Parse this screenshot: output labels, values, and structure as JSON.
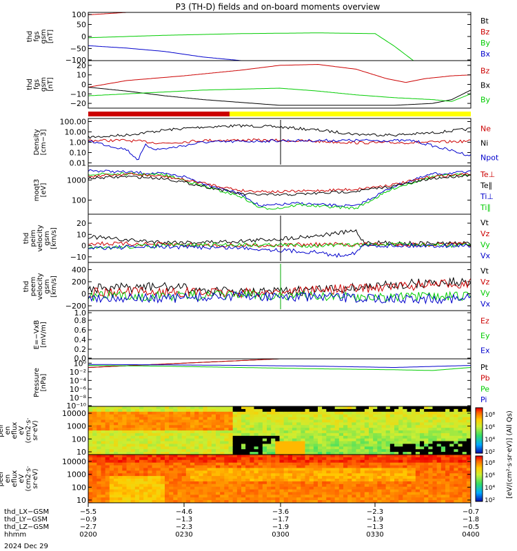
{
  "title": "P3 (TH-D) fields and on-board moments overview",
  "date_label": "2024 Dec 29",
  "colors": {
    "black": "#000000",
    "red": "#cc0000",
    "green": "#00cc00",
    "blue": "#0000cc",
    "yellow": "#ffff00"
  },
  "chart_data": [
    {
      "type": "line",
      "ylabel": [
        "thd",
        "fgs",
        "gsm",
        "[nT]"
      ],
      "ylim": [
        -100,
        100
      ],
      "yticks": [
        "100",
        "50",
        "0",
        "−50",
        "−100"
      ],
      "legend": [
        {
          "label": "Bt",
          "color": "#000000"
        },
        {
          "label": "Bz",
          "color": "#cc0000"
        },
        {
          "label": "By",
          "color": "#00cc00"
        },
        {
          "label": "Bx",
          "color": "#0000cc"
        }
      ],
      "series": [
        {
          "name": "Bz",
          "color": "#cc0000",
          "x": [
            0,
            0.08,
            0.2
          ],
          "y": [
            90,
            98,
            110
          ]
        },
        {
          "name": "By",
          "color": "#00cc00",
          "x": [
            0,
            0.2,
            0.4,
            0.6,
            0.75,
            0.8,
            0.85
          ],
          "y": [
            -5,
            5,
            12,
            15,
            12,
            -40,
            -100
          ]
        },
        {
          "name": "Bx",
          "color": "#0000cc",
          "x": [
            0,
            0.1,
            0.2,
            0.3,
            0.4
          ],
          "y": [
            -38,
            -48,
            -62,
            -85,
            -100
          ]
        }
      ]
    },
    {
      "type": "line",
      "ylabel": [
        "thd",
        "fgs",
        "gsm",
        "[nT]"
      ],
      "ylim": [
        -25,
        25
      ],
      "yticks": [
        "20",
        "10",
        "0",
        "−10",
        "−20"
      ],
      "legend": [
        {
          "label": "Bz",
          "color": "#cc0000"
        },
        {
          "label": "Bx",
          "color": "#000000"
        },
        {
          "label": "By",
          "color": "#00cc00"
        }
      ],
      "series": [
        {
          "name": "Bz",
          "color": "#cc0000",
          "x": [
            0,
            0.1,
            0.25,
            0.4,
            0.5,
            0.6,
            0.7,
            0.78,
            0.83,
            0.88,
            0.95,
            1.0
          ],
          "y": [
            -3,
            4,
            9,
            15,
            20,
            21,
            16,
            6,
            2,
            6,
            9,
            10
          ]
        },
        {
          "name": "Bx",
          "color": "#000000",
          "x": [
            0,
            0.1,
            0.2,
            0.3,
            0.4,
            0.5,
            0.6,
            0.7,
            0.8,
            0.9,
            0.95,
            1.0
          ],
          "y": [
            -3,
            -7,
            -12,
            -16,
            -19,
            -22,
            -22,
            -22,
            -22,
            -20,
            -16,
            -6
          ]
        },
        {
          "name": "By",
          "color": "#00cc00",
          "x": [
            0,
            0.1,
            0.2,
            0.3,
            0.4,
            0.5,
            0.6,
            0.7,
            0.8,
            0.9,
            0.95,
            1.0
          ],
          "y": [
            -12,
            -10,
            -8,
            -6,
            -5,
            -4,
            -7,
            -11,
            -14,
            -16,
            -18,
            -10
          ]
        }
      ]
    },
    {
      "type": "line",
      "log": true,
      "ylabel": [
        "Density",
        "[cm−3]"
      ],
      "ylim": [
        0.005,
        200
      ],
      "yticks": [
        "100.00",
        "10.00",
        "1.00",
        "0.10",
        "0.01"
      ],
      "ytick_values": [
        100,
        10,
        1,
        0.1,
        0.01
      ],
      "legend": [
        {
          "label": "Ne",
          "color": "#cc0000"
        },
        {
          "label": "Ni",
          "color": "#000000"
        },
        {
          "label": "Npot",
          "color": "#0000cc"
        }
      ],
      "series": [
        {
          "name": "Ni",
          "color": "#000000",
          "x": [
            0,
            0.1,
            0.2,
            0.3,
            0.4,
            0.5,
            0.6,
            0.7,
            0.8,
            0.9,
            1.0
          ],
          "y": [
            3,
            5,
            15,
            30,
            40,
            30,
            15,
            6,
            5,
            8,
            20
          ]
        },
        {
          "name": "Ne",
          "color": "#cc0000",
          "x": [
            0,
            0.1,
            0.2,
            0.3,
            0.4,
            0.5,
            0.6,
            0.7,
            0.8,
            0.9,
            1.0
          ],
          "y": [
            1.5,
            1.5,
            0.8,
            1.5,
            1.6,
            1.5,
            1.2,
            0.9,
            0.9,
            1,
            1.3
          ]
        },
        {
          "name": "Npot",
          "color": "#0000cc",
          "x": [
            0,
            0.05,
            0.1,
            0.13,
            0.15,
            0.18,
            0.22,
            0.3,
            0.5,
            0.7,
            0.85,
            1.0
          ],
          "y": [
            1.5,
            0.5,
            0.2,
            0.02,
            0.5,
            0.2,
            0.3,
            1,
            1.4,
            1.5,
            1.4,
            0.05
          ]
        }
      ]
    },
    {
      "type": "line",
      "log": true,
      "ylabel": [
        "moqt3",
        "[eV]"
      ],
      "ylim": [
        20,
        5000
      ],
      "yticks": [
        "1000",
        "100"
      ],
      "ytick_values": [
        1000,
        100
      ],
      "legend": [
        {
          "label": "Te⊥",
          "color": "#cc0000"
        },
        {
          "label": "Te∥",
          "color": "#000000"
        },
        {
          "label": "Ti⊥",
          "color": "#0000cc"
        },
        {
          "label": "Ti∥",
          "color": "#00cc00"
        }
      ],
      "series": [
        {
          "name": "Ti⊥",
          "color": "#0000cc",
          "x": [
            0,
            0.1,
            0.2,
            0.25,
            0.3,
            0.4,
            0.45,
            0.5,
            0.55,
            0.6,
            0.7,
            0.8,
            0.9,
            1.0
          ],
          "y": [
            3000,
            2500,
            2000,
            1500,
            700,
            200,
            50,
            60,
            70,
            60,
            50,
            500,
            2000,
            2500
          ]
        },
        {
          "name": "Ti∥",
          "color": "#00cc00",
          "x": [
            0,
            0.1,
            0.2,
            0.25,
            0.3,
            0.4,
            0.45,
            0.5,
            0.55,
            0.6,
            0.7,
            0.8,
            0.9,
            1.0
          ],
          "y": [
            2000,
            2000,
            1800,
            1000,
            500,
            150,
            40,
            40,
            60,
            50,
            40,
            400,
            1500,
            2000
          ]
        },
        {
          "name": "Te⊥",
          "color": "#cc0000",
          "x": [
            0,
            0.1,
            0.2,
            0.3,
            0.4,
            0.5,
            0.6,
            0.7,
            0.8,
            0.9,
            1.0
          ],
          "y": [
            1500,
            2000,
            1500,
            700,
            300,
            260,
            300,
            350,
            600,
            1500,
            2000
          ]
        },
        {
          "name": "Te∥",
          "color": "#000000",
          "x": [
            0,
            0.1,
            0.2,
            0.3,
            0.4,
            0.5,
            0.6,
            0.7,
            0.8,
            0.9,
            1.0
          ],
          "y": [
            1200,
            1500,
            1200,
            500,
            200,
            180,
            220,
            280,
            500,
            1200,
            1800
          ]
        }
      ]
    },
    {
      "type": "line",
      "ylabel": [
        "thd",
        "peim",
        "velocity",
        "gsm",
        "[km/s]"
      ],
      "ylim": [
        -15,
        28
      ],
      "yticks": [
        "20",
        "10",
        "0",
        "−10"
      ],
      "legend": [
        {
          "label": "Vt",
          "color": "#000000"
        },
        {
          "label": "Vz",
          "color": "#cc0000"
        },
        {
          "label": "Vy",
          "color": "#00cc00"
        },
        {
          "label": "Vx",
          "color": "#0000cc"
        }
      ],
      "series": [
        {
          "name": "Vt",
          "color": "#000000",
          "x": [
            0,
            0.1,
            0.2,
            0.3,
            0.4,
            0.5,
            0.6,
            0.7,
            0.72,
            0.8,
            0.9,
            1.0
          ],
          "y": [
            8,
            5,
            3,
            3,
            4,
            6,
            9,
            13,
            3,
            2,
            2,
            2
          ]
        },
        {
          "name": "Vz",
          "color": "#cc0000",
          "x": [
            0,
            0.2,
            0.4,
            0.6,
            0.8,
            1.0
          ],
          "y": [
            2,
            1,
            0,
            1,
            1,
            1
          ]
        },
        {
          "name": "Vy",
          "color": "#00cc00",
          "x": [
            0,
            0.1,
            0.2,
            0.4,
            0.6,
            0.8,
            1.0
          ],
          "y": [
            -3,
            -1,
            0,
            1,
            0,
            1,
            0
          ]
        },
        {
          "name": "Vx",
          "color": "#0000cc",
          "x": [
            0,
            0.2,
            0.4,
            0.5,
            0.6,
            0.65,
            0.7,
            0.72,
            0.8,
            1.0
          ],
          "y": [
            -2,
            -1,
            -2,
            -4,
            -6,
            -9,
            -6,
            0,
            0,
            0
          ]
        }
      ]
    },
    {
      "type": "line",
      "ylabel": [
        "thd",
        "peem",
        "velocity",
        "gsm",
        "[km/s]"
      ],
      "ylim": [
        -280,
        520
      ],
      "yticks": [
        "400",
        "200",
        "0",
        "−200"
      ],
      "legend": [
        {
          "label": "Vt",
          "color": "#000000"
        },
        {
          "label": "Vz",
          "color": "#cc0000"
        },
        {
          "label": "Vy",
          "color": "#00cc00"
        },
        {
          "label": "Vx",
          "color": "#0000cc"
        }
      ],
      "series": [
        {
          "name": "Vt",
          "color": "#000000",
          "x": [
            0,
            0.1,
            0.2,
            0.3,
            0.4,
            0.5,
            0.6,
            0.7,
            0.8,
            0.9,
            1.0
          ],
          "y": [
            80,
            100,
            120,
            60,
            20,
            30,
            60,
            100,
            150,
            180,
            200
          ]
        },
        {
          "name": "Vz",
          "color": "#cc0000",
          "x": [
            0,
            0.2,
            0.4,
            0.6,
            0.8,
            1.0
          ],
          "y": [
            20,
            30,
            10,
            60,
            120,
            180
          ]
        },
        {
          "name": "Vy",
          "color": "#00cc00",
          "x": [
            0,
            0.2,
            0.4,
            0.6,
            0.8,
            1.0
          ],
          "y": [
            -40,
            -40,
            -20,
            -40,
            -60,
            -40
          ]
        },
        {
          "name": "Vx",
          "color": "#0000cc",
          "x": [
            0,
            0.2,
            0.4,
            0.6,
            0.8,
            1.0
          ],
          "y": [
            -60,
            -80,
            -40,
            -60,
            -80,
            -80
          ]
        }
      ]
    },
    {
      "type": "line",
      "ylabel": [
        "E=−VxB",
        "[mV/m]"
      ],
      "ylim": [
        0,
        1
      ],
      "yticks": [
        "1.0",
        "0.8",
        "0.6",
        "0.4",
        "0.2",
        "0.0"
      ],
      "legend": [
        {
          "label": "Ez",
          "color": "#cc0000"
        },
        {
          "label": "Ey",
          "color": "#00cc00"
        },
        {
          "label": "Ex",
          "color": "#0000cc"
        }
      ],
      "series": []
    },
    {
      "type": "line",
      "log": true,
      "ylabel": [
        "Pressure",
        "[nPa]"
      ],
      "ylim": [
        1e-10,
        10
      ],
      "yticks": [
        "10⁰",
        "10⁻²",
        "10⁻⁴",
        "10⁻⁶",
        "10⁻⁸",
        "10⁻¹⁰"
      ],
      "ytick_values": [
        1,
        0.01,
        0.0001,
        1e-06,
        1e-08,
        1e-10
      ],
      "legend": [
        {
          "label": "Pt",
          "color": "#000000"
        },
        {
          "label": "Pb",
          "color": "#cc0000"
        },
        {
          "label": "Pe",
          "color": "#00cc00"
        },
        {
          "label": "Pi",
          "color": "#0000cc"
        }
      ],
      "series": [
        {
          "name": "Pt",
          "color": "#000000",
          "x": [
            0,
            0.5
          ],
          "y": [
            0.1,
            10
          ]
        },
        {
          "name": "Pb",
          "color": "#cc0000",
          "x": [
            0,
            0.5
          ],
          "y": [
            0.1,
            10
          ]
        },
        {
          "name": "Pi",
          "color": "#0000cc",
          "x": [
            0,
            0.2,
            0.4,
            0.6,
            0.8,
            1.0
          ],
          "y": [
            0.5,
            0.4,
            0.3,
            0.2,
            0.1,
            0.3
          ]
        },
        {
          "name": "Pe",
          "color": "#00cc00",
          "x": [
            0,
            0.2,
            0.4,
            0.6,
            0.8,
            0.9,
            1.0
          ],
          "y": [
            0.3,
            0.2,
            0.1,
            0.05,
            0.03,
            0.02,
            0.1
          ]
        }
      ]
    },
    {
      "type": "heatmap",
      "ylabel": [
        "thd",
        "peir",
        "en",
        "eflux",
        "eV",
        "(cm2·s·",
        "sr·eV)"
      ],
      "yticks": [
        "10000",
        "1000",
        "100",
        "10"
      ],
      "colorbar_ticks": [
        "10⁸",
        "10⁶",
        "10⁴",
        "10²"
      ]
    },
    {
      "type": "heatmap",
      "ylabel": [
        "thd",
        "peer",
        "en",
        "eflux",
        "eV",
        "(cm2·s·",
        "sr·eV)"
      ],
      "yticks": [
        "10000",
        "1000",
        "100",
        "10"
      ],
      "colorbar_ticks": [
        "10⁸",
        "10⁶",
        "10⁴",
        "10²"
      ]
    }
  ],
  "colorbar_label": "[eV/(cm²·s·sr·eV)] (All Qs)",
  "xaxis": {
    "rows": [
      {
        "label": "thd_LX−GSM",
        "values": [
          "−5.5",
          "−4.6",
          "−3.6",
          "−2.3",
          "−0.7"
        ]
      },
      {
        "label": "thd_LY−GSM",
        "values": [
          "−0.9",
          "−1.3",
          "−1.7",
          "−1.9",
          "−1.8"
        ]
      },
      {
        "label": "thd_LZ−GSM",
        "values": [
          "−2.7",
          "−2.3",
          "−1.9",
          "−1.3",
          "−0.5"
        ]
      },
      {
        "label": "hhmm",
        "values": [
          "0200",
          "0230",
          "0300",
          "0330",
          "0400"
        ]
      }
    ]
  }
}
